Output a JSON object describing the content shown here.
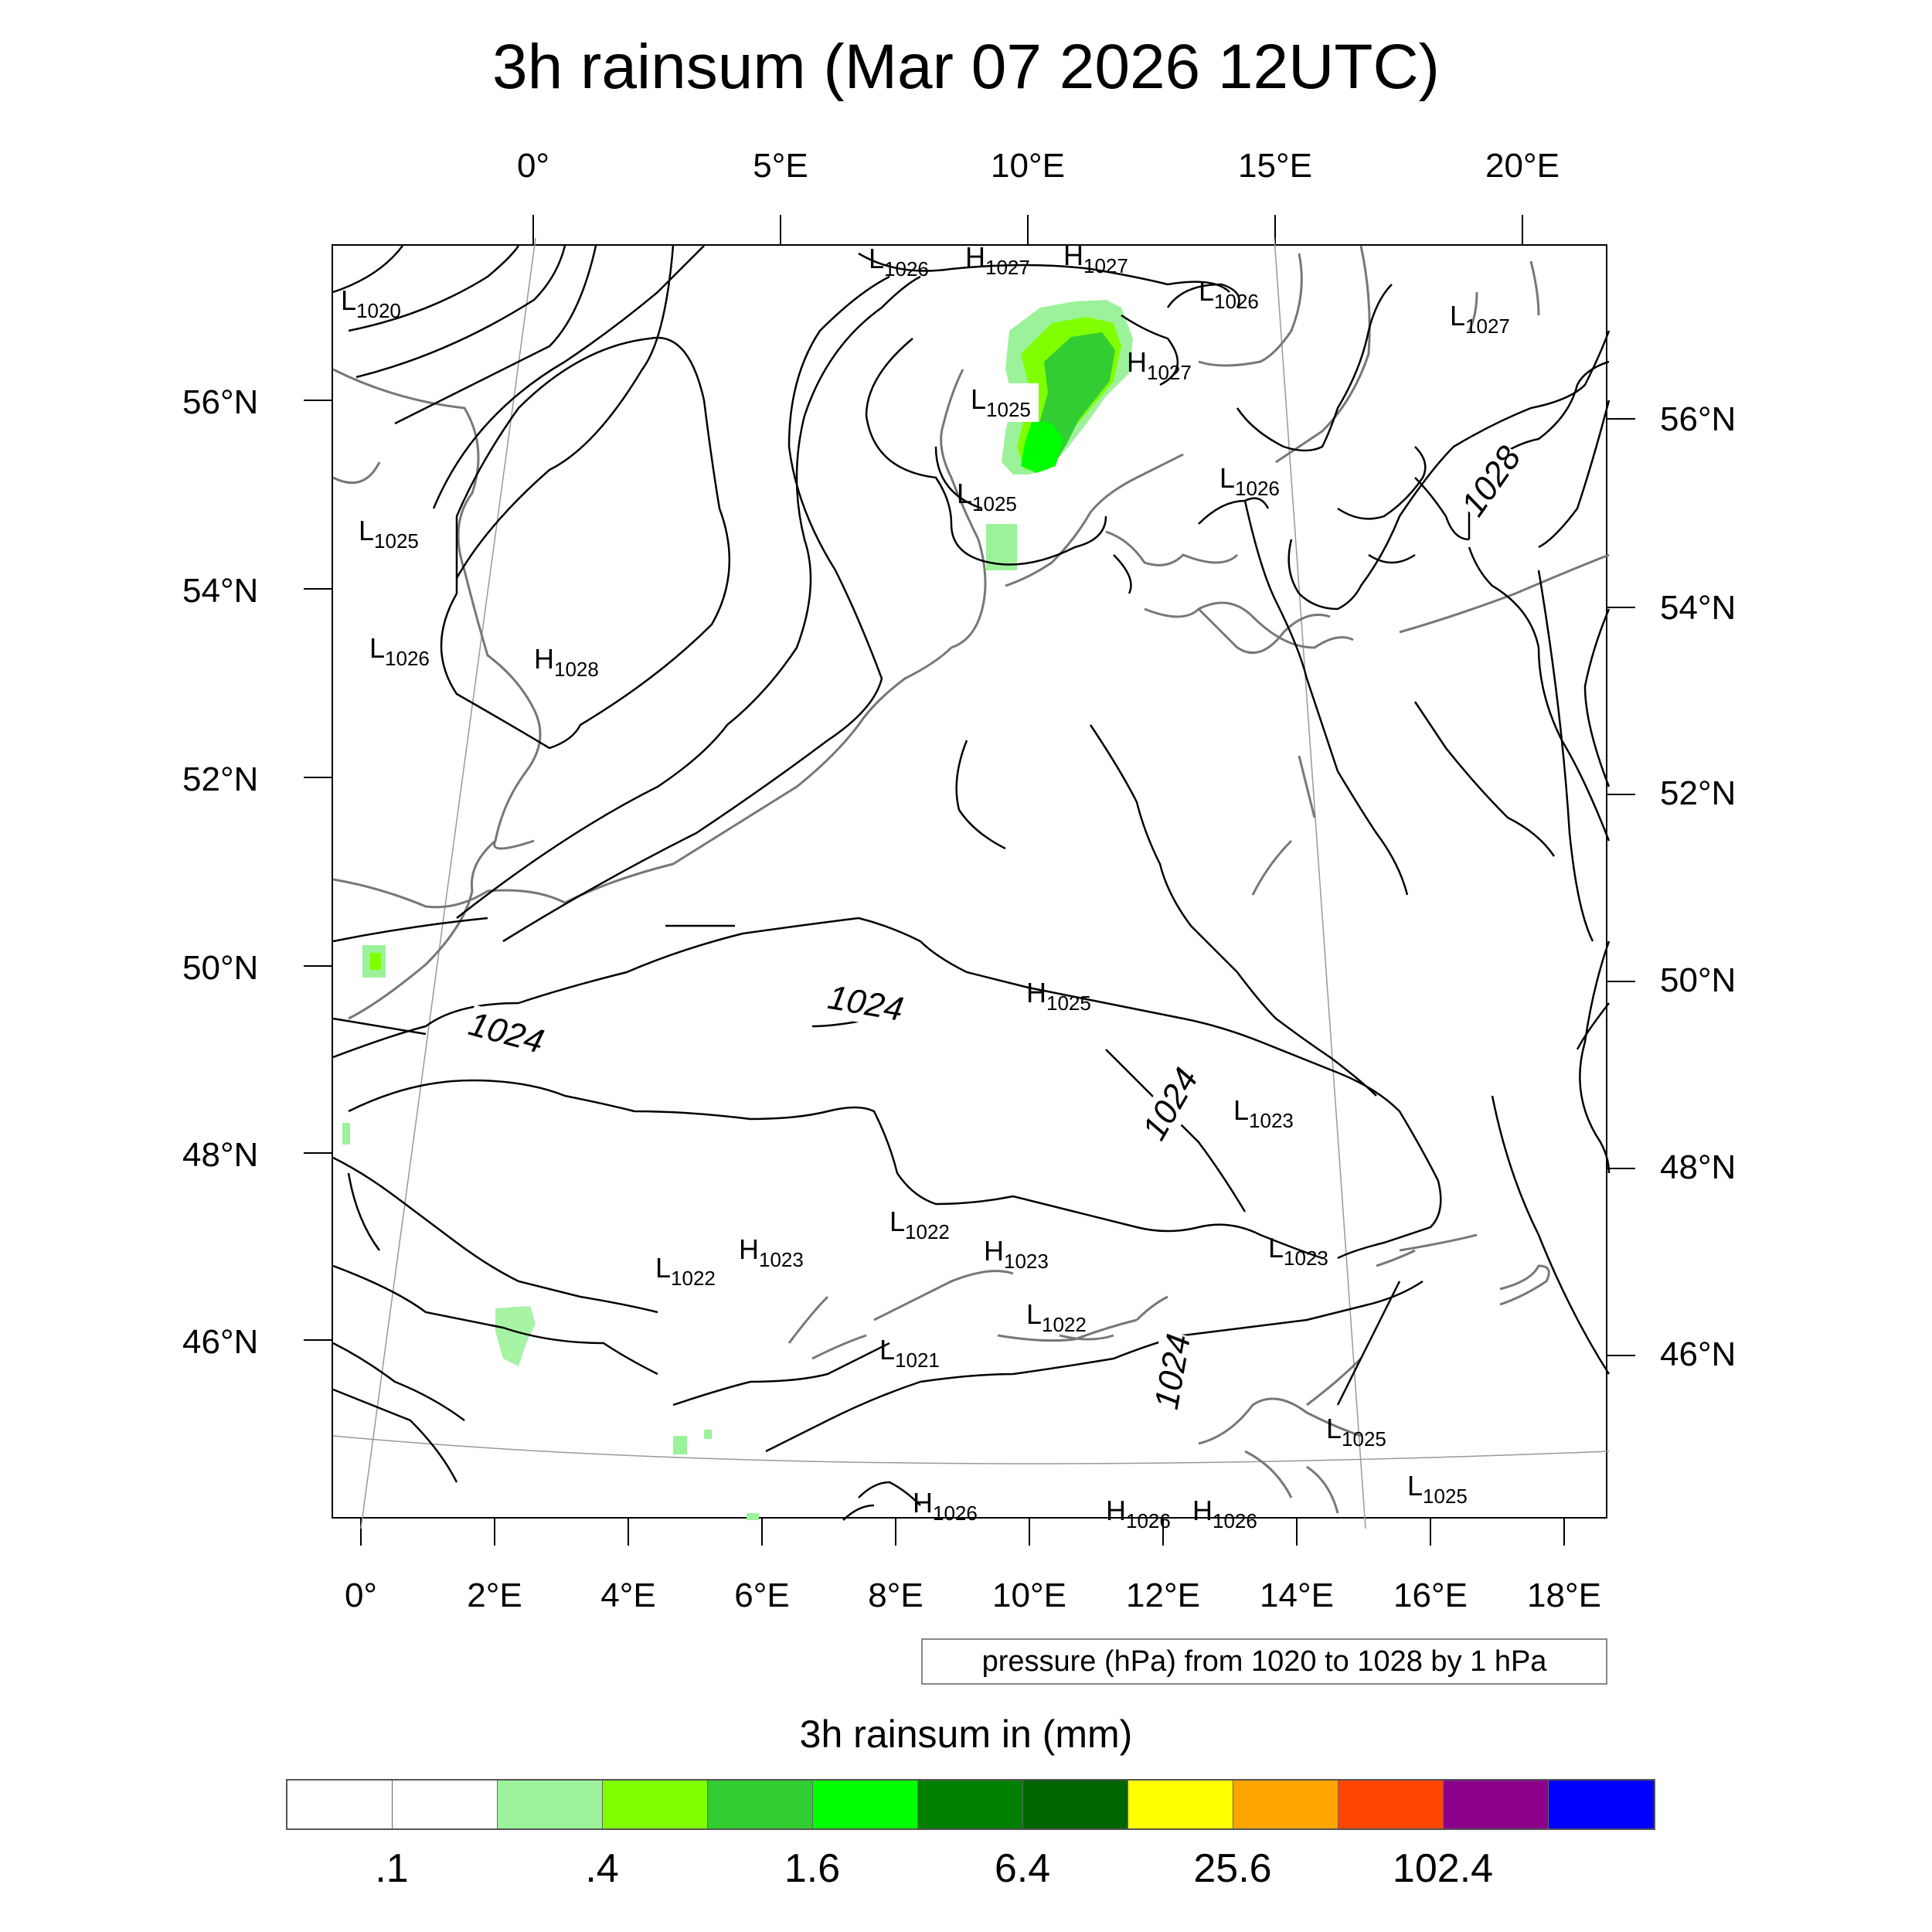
{
  "title": "3h rainsum (Mar 07 2026 12UTC)",
  "top_axis_labels": [
    "0°",
    "5°E",
    "10°E",
    "15°E",
    "20°E"
  ],
  "bottom_axis_labels": [
    "0°",
    "2°E",
    "4°E",
    "6°E",
    "8°E",
    "10°E",
    "12°E",
    "14°E",
    "16°E",
    "18°E"
  ],
  "left_axis_labels": [
    "56°N",
    "54°N",
    "52°N",
    "50°N",
    "48°N",
    "46°N"
  ],
  "right_axis_labels": [
    "56°N",
    "54°N",
    "52°N",
    "50°N",
    "48°N",
    "46°N"
  ],
  "pressure_centers": [
    {
      "type": "L",
      "value": "1026"
    },
    {
      "type": "H",
      "value": "1027"
    },
    {
      "type": "H",
      "value": "1027"
    },
    {
      "type": "L",
      "value": "1020"
    },
    {
      "type": "L",
      "value": "1026"
    },
    {
      "type": "L",
      "value": "1027"
    },
    {
      "type": "H",
      "value": "1027"
    },
    {
      "type": "L",
      "value": "1025"
    },
    {
      "type": "L",
      "value": "1025"
    },
    {
      "type": "L",
      "value": "1026"
    },
    {
      "type": "L",
      "value": "1025"
    },
    {
      "type": "L",
      "value": "1026"
    },
    {
      "type": "H",
      "value": "1028"
    },
    {
      "type": "H",
      "value": "1025"
    },
    {
      "type": "L",
      "value": "1023"
    },
    {
      "type": "L",
      "value": "1022"
    },
    {
      "type": "L",
      "value": "1022"
    },
    {
      "type": "H",
      "value": "1023"
    },
    {
      "type": "H",
      "value": "1023"
    },
    {
      "type": "L",
      "value": "1023"
    },
    {
      "type": "L",
      "value": "1022"
    },
    {
      "type": "L",
      "value": "1021"
    },
    {
      "type": "L",
      "value": "1025"
    },
    {
      "type": "L",
      "value": "1025"
    },
    {
      "type": "H",
      "value": "1026"
    },
    {
      "type": "H",
      "value": "1026"
    },
    {
      "type": "H",
      "value": "1026"
    }
  ],
  "contour_labels": [
    "1028",
    "1024",
    "1024",
    "1024",
    "1024"
  ],
  "note": "pressure (hPa) from 1020 to 1028 by 1 hPa",
  "legend": {
    "title": "3h rainsum in (mm)",
    "colors": [
      "#ffffff",
      "#ffffff",
      "#9cf29a",
      "#80ff00",
      "#32cd32",
      "#00ff00",
      "#008000",
      "#006400",
      "#ffff00",
      "#ffa500",
      "#ff4500",
      "#8b008b",
      "#0000ff"
    ],
    "tick_labels": [
      ".1",
      ".4",
      "1.6",
      "6.4",
      "25.6",
      "102.4"
    ]
  },
  "rain_colors": {
    "light": "#9cf29a",
    "lime": "#80ff00",
    "medium": "#32cd32",
    "bright": "#00ff00"
  },
  "chart_data": {
    "type": "map",
    "title": "3h rainsum (Mar 07 2026 12UTC)",
    "field": "3h rainsum in (mm)",
    "contour_field": "pressure (hPa)",
    "contour_range": [
      1020,
      1028
    ],
    "contour_step": 1,
    "longitude_range": [
      -0.5,
      18.5
    ],
    "latitude_range": [
      44.5,
      57.3
    ],
    "color_levels": [
      0.1,
      0.2,
      0.4,
      0.8,
      1.6,
      3.2,
      6.4,
      12.8,
      25.6,
      51.2,
      102.4,
      204.8
    ]
  }
}
